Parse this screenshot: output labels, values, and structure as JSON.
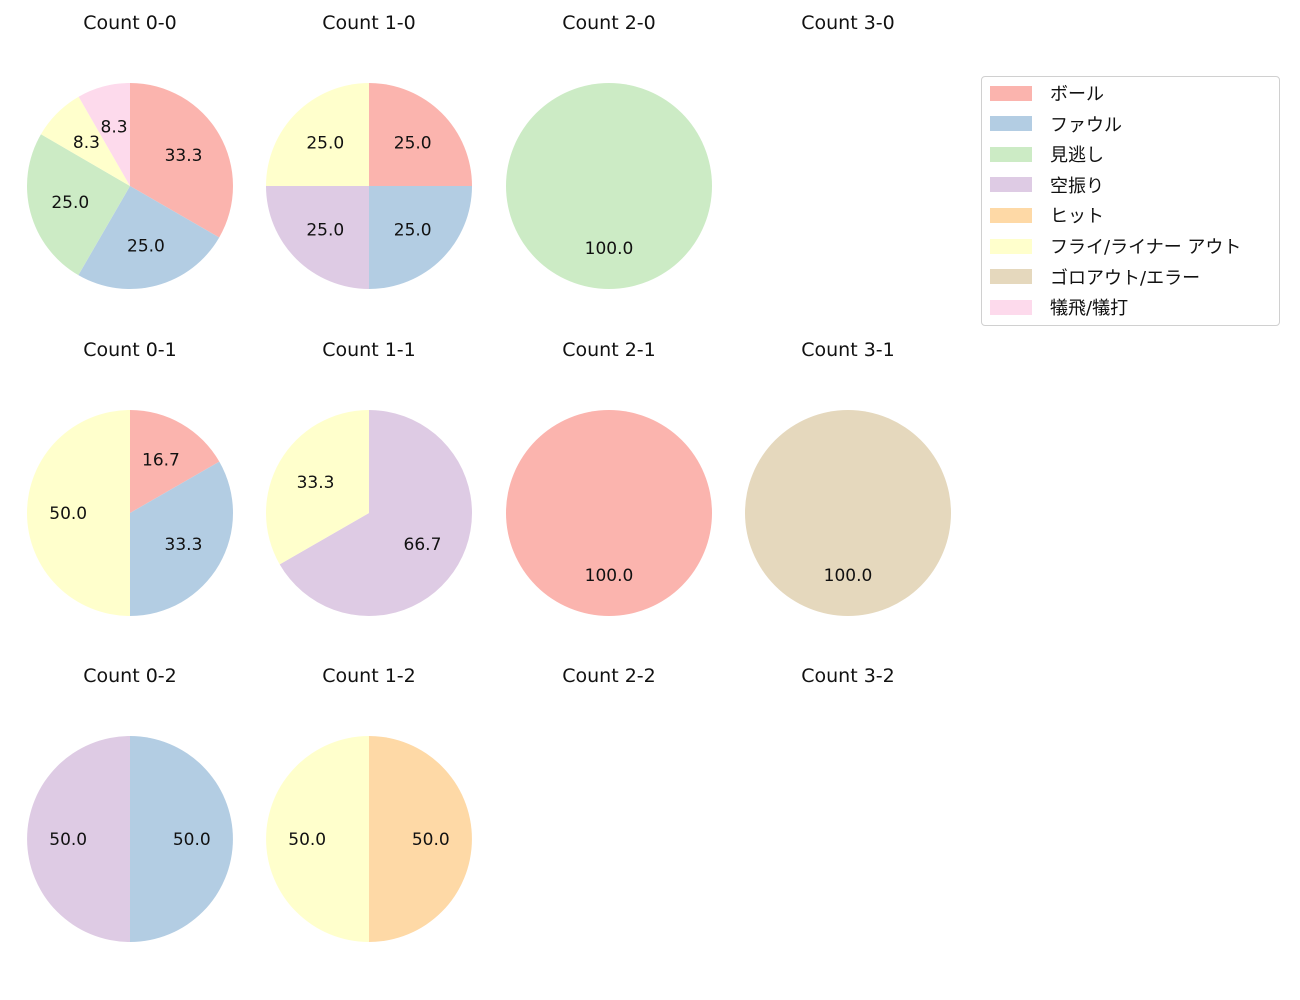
{
  "legend": {
    "entries": [
      {
        "label": "ボール",
        "color": "#fbb4ae"
      },
      {
        "label": "ファウル",
        "color": "#b3cde3"
      },
      {
        "label": "見逃し",
        "color": "#ccebc5"
      },
      {
        "label": "空振り",
        "color": "#decbe4"
      },
      {
        "label": "ヒット",
        "color": "#fed9a6"
      },
      {
        "label": "フライ/ライナー アウト",
        "color": "#ffffcc"
      },
      {
        "label": "ゴロアウト/エラー",
        "color": "#e5d8bd"
      },
      {
        "label": "犠飛/犠打",
        "color": "#fddaec"
      }
    ]
  },
  "chart_data": [
    {
      "type": "pie",
      "title": "Count 0-0",
      "row": 0,
      "col": 0,
      "labels": [
        "ボール",
        "ファウル",
        "見逃し",
        "フライ/ライナー アウト",
        "犠飛/犠打"
      ],
      "values": [
        33.3,
        25.0,
        25.0,
        8.3,
        8.3
      ]
    },
    {
      "type": "pie",
      "title": "Count 1-0",
      "row": 0,
      "col": 1,
      "labels": [
        "ボール",
        "ファウル",
        "空振り",
        "フライ/ライナー アウト"
      ],
      "values": [
        25.0,
        25.0,
        25.0,
        25.0
      ]
    },
    {
      "type": "pie",
      "title": "Count 2-0",
      "row": 0,
      "col": 2,
      "labels": [
        "見逃し"
      ],
      "values": [
        100.0
      ]
    },
    {
      "type": "pie",
      "title": "Count 3-0",
      "row": 0,
      "col": 3,
      "labels": [],
      "values": []
    },
    {
      "type": "pie",
      "title": "Count 0-1",
      "row": 1,
      "col": 0,
      "labels": [
        "ボール",
        "ファウル",
        "フライ/ライナー アウト"
      ],
      "values": [
        16.7,
        33.3,
        50.0
      ]
    },
    {
      "type": "pie",
      "title": "Count 1-1",
      "row": 1,
      "col": 1,
      "labels": [
        "空振り",
        "フライ/ライナー アウト"
      ],
      "values": [
        66.7,
        33.3
      ]
    },
    {
      "type": "pie",
      "title": "Count 2-1",
      "row": 1,
      "col": 2,
      "labels": [
        "ボール"
      ],
      "values": [
        100.0
      ]
    },
    {
      "type": "pie",
      "title": "Count 3-1",
      "row": 1,
      "col": 3,
      "labels": [
        "ゴロアウト/エラー"
      ],
      "values": [
        100.0
      ]
    },
    {
      "type": "pie",
      "title": "Count 0-2",
      "row": 2,
      "col": 0,
      "labels": [
        "ファウル",
        "空振り"
      ],
      "values": [
        50.0,
        50.0
      ]
    },
    {
      "type": "pie",
      "title": "Count 1-2",
      "row": 2,
      "col": 1,
      "labels": [
        "ヒット",
        "フライ/ライナー アウト"
      ],
      "values": [
        50.0,
        50.0
      ]
    },
    {
      "type": "pie",
      "title": "Count 2-2",
      "row": 2,
      "col": 2,
      "labels": [],
      "values": []
    },
    {
      "type": "pie",
      "title": "Count 3-2",
      "row": 2,
      "col": 3,
      "labels": [],
      "values": []
    }
  ]
}
